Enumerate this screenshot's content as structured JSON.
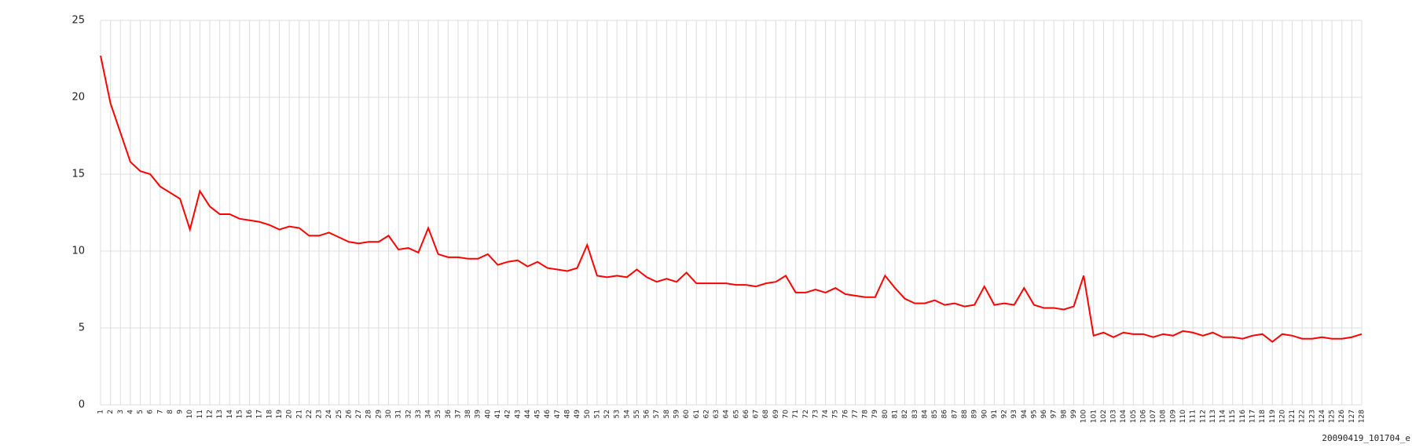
{
  "chart_data": {
    "type": "line",
    "x": [
      1,
      2,
      3,
      4,
      5,
      6,
      7,
      8,
      9,
      10,
      11,
      12,
      13,
      14,
      15,
      16,
      17,
      18,
      19,
      20,
      21,
      22,
      23,
      24,
      25,
      26,
      27,
      28,
      29,
      30,
      31,
      32,
      33,
      34,
      35,
      36,
      37,
      38,
      39,
      40,
      41,
      42,
      43,
      44,
      45,
      46,
      47,
      48,
      49,
      50,
      51,
      52,
      53,
      54,
      55,
      56,
      57,
      58,
      59,
      60,
      61,
      62,
      63,
      64,
      65,
      66,
      67,
      68,
      69,
      70,
      71,
      72,
      73,
      74,
      75,
      76,
      77,
      78,
      79,
      80,
      81,
      82,
      83,
      84,
      85,
      86,
      87,
      88,
      89,
      90,
      91,
      92,
      93,
      94,
      95,
      96,
      97,
      98,
      99,
      100,
      101,
      102,
      103,
      104,
      105,
      106,
      107,
      108,
      109,
      110,
      111,
      112,
      113,
      114,
      115,
      116,
      117,
      118,
      119,
      120,
      121,
      122,
      123,
      124,
      125,
      126,
      127,
      128
    ],
    "series": [
      {
        "color": "#ff0000",
        "values": [
          22.7,
          19.6,
          17.7,
          15.8,
          15.2,
          15.0,
          14.2,
          13.8,
          13.4,
          11.4,
          13.9,
          12.9,
          12.4,
          12.4,
          12.1,
          12.0,
          11.9,
          11.7,
          11.4,
          11.6,
          11.5,
          11.0,
          11.0,
          11.2,
          10.9,
          10.6,
          10.5,
          10.6,
          10.6,
          11.0,
          10.1,
          10.2,
          9.9,
          11.5,
          9.8,
          9.6,
          9.6,
          9.5,
          9.5,
          9.8,
          9.1,
          9.3,
          9.4,
          9.0,
          9.3,
          8.9,
          8.8,
          8.7,
          8.9,
          10.4,
          8.4,
          8.3,
          8.4,
          8.3,
          8.8,
          8.3,
          8.0,
          8.2,
          8.0,
          8.6,
          7.9,
          7.9,
          7.9,
          7.9,
          7.8,
          7.8,
          7.7,
          7.9,
          8.0,
          8.4,
          7.3,
          7.3,
          7.5,
          7.3,
          7.6,
          7.2,
          7.1,
          7.0,
          7.0,
          8.4,
          7.6,
          6.9,
          6.6,
          6.6,
          6.8,
          6.5,
          6.6,
          6.4,
          6.5,
          7.7,
          6.5,
          6.6,
          6.5,
          7.6,
          6.5,
          6.3,
          6.3,
          6.2,
          6.4,
          8.4,
          4.5,
          4.7,
          4.4,
          4.7,
          4.6,
          4.6,
          4.4,
          4.6,
          4.5,
          4.8,
          4.7,
          4.5,
          4.7,
          4.4,
          4.4,
          4.3,
          4.5,
          4.6,
          4.1,
          4.6,
          4.5,
          4.3,
          4.3,
          4.4,
          4.3,
          4.3,
          4.4,
          4.6
        ]
      }
    ],
    "xlim": [
      1,
      128
    ],
    "ylim": [
      0,
      25
    ],
    "yticks": [
      0,
      5,
      10,
      15,
      20,
      25
    ],
    "grid": true,
    "caption": "20090419_101704_e"
  }
}
